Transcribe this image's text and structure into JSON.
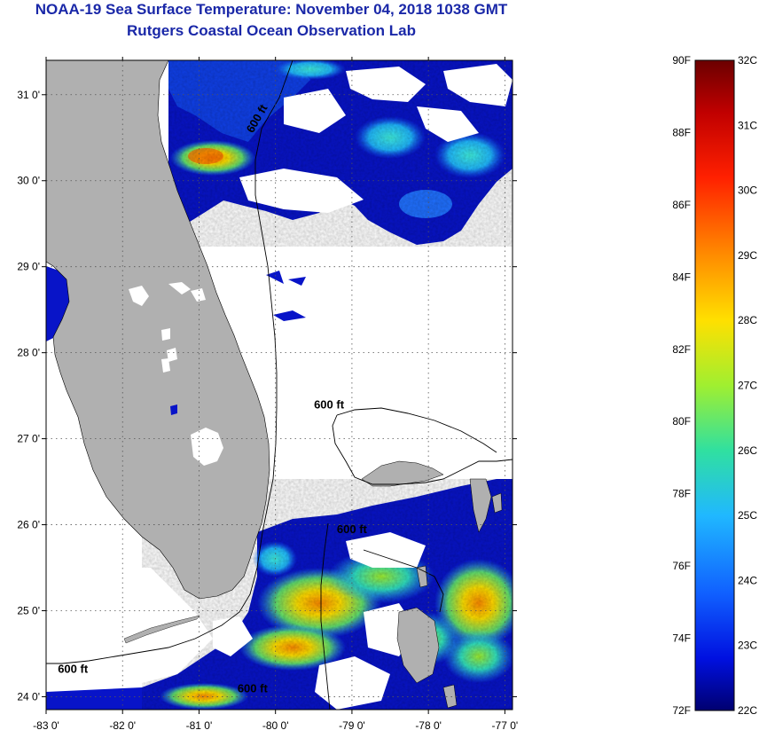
{
  "header": {
    "title": "NOAA-19 Sea Surface Temperature:  November 04, 2018 1038 GMT",
    "subtitle": "Rutgers Coastal Ocean Observation Lab"
  },
  "map": {
    "lon_range": [
      -83,
      -76.9
    ],
    "lat_range": [
      23.85,
      31.4
    ],
    "lon_ticks": [
      {
        "value": -83,
        "label": "-83 0'"
      },
      {
        "value": -82,
        "label": "-82 0'"
      },
      {
        "value": -81,
        "label": "-81 0'"
      },
      {
        "value": -80,
        "label": "-80 0'"
      },
      {
        "value": -79,
        "label": "-79 0'"
      },
      {
        "value": -78,
        "label": "-78 0'"
      },
      {
        "value": -77,
        "label": "-77 0'"
      }
    ],
    "lat_ticks": [
      {
        "value": 24,
        "label": "24 0'"
      },
      {
        "value": 25,
        "label": "25 0'"
      },
      {
        "value": 26,
        "label": "26 0'"
      },
      {
        "value": 27,
        "label": "27 0'"
      },
      {
        "value": 28,
        "label": "28 0'"
      },
      {
        "value": 29,
        "label": "29 0'"
      },
      {
        "value": 30,
        "label": "30 0'"
      },
      {
        "value": 31,
        "label": "31 0'"
      }
    ],
    "contour_labels": [
      {
        "text": "600 ft",
        "lon": -79.3,
        "lat": 27.35
      },
      {
        "text": "600 ft",
        "lon": -79.0,
        "lat": 25.9
      },
      {
        "text": "600 ft",
        "lon": -80.3,
        "lat": 24.05
      },
      {
        "text": "600 ft",
        "lon": -82.65,
        "lat": 24.28
      },
      {
        "text": "600 ft",
        "lon": -80.2,
        "lat": 30.7
      }
    ],
    "colors": {
      "land": "#b0b0b0",
      "cloud": "#ffffff",
      "grid": "#555555"
    }
  },
  "colorbar": {
    "fahrenheit_labels": [
      "90F",
      "88F",
      "86F",
      "84F",
      "82F",
      "80F",
      "78F",
      "76F",
      "74F",
      "72F"
    ],
    "celsius_labels": [
      "32C",
      "31C",
      "30C",
      "29C",
      "28C",
      "27C",
      "26C",
      "25C",
      "24C",
      "23C",
      "22C"
    ],
    "f_range": [
      72,
      90
    ],
    "c_range": [
      22,
      32
    ],
    "gradient_stops": [
      {
        "offset": 0.0,
        "color": "#6b0000"
      },
      {
        "offset": 0.08,
        "color": "#c00000"
      },
      {
        "offset": 0.18,
        "color": "#ff2000"
      },
      {
        "offset": 0.3,
        "color": "#ff8c00"
      },
      {
        "offset": 0.4,
        "color": "#ffe000"
      },
      {
        "offset": 0.5,
        "color": "#a0ef30"
      },
      {
        "offset": 0.6,
        "color": "#30e0a0"
      },
      {
        "offset": 0.7,
        "color": "#20b8ff"
      },
      {
        "offset": 0.82,
        "color": "#1060ff"
      },
      {
        "offset": 0.92,
        "color": "#0010e0"
      },
      {
        "offset": 1.0,
        "color": "#000070"
      }
    ]
  }
}
